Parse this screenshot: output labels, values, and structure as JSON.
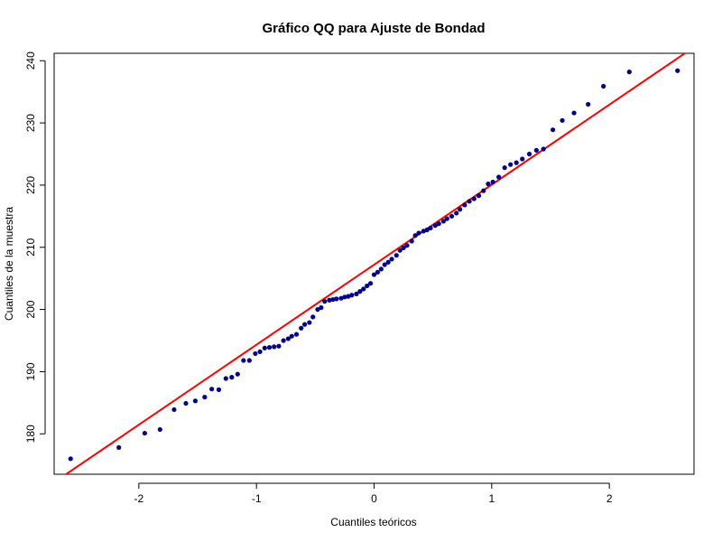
{
  "chart_data": {
    "type": "scatter",
    "title": "Gráfico QQ para Ajuste de Bondad",
    "xlabel": "Cuantiles teóricos",
    "ylabel": "Cuantiles de la muestra",
    "xlim": [
      -2.72,
      2.72
    ],
    "ylim": [
      173.5,
      241.2
    ],
    "xticks": [
      -2,
      -1,
      0,
      1,
      2
    ],
    "xtick_labels": [
      "-2",
      "-1",
      "0",
      "1",
      "2"
    ],
    "yticks": [
      180,
      190,
      200,
      210,
      220,
      230,
      240
    ],
    "ytick_labels": [
      "180",
      "190",
      "200",
      "210",
      "220",
      "230",
      "240"
    ],
    "grid": false,
    "point_color": "#00008B",
    "line_color": "#FF0000",
    "series": [
      {
        "kind": "points",
        "x": [
          -2.58,
          -2.17,
          -1.95,
          -1.82,
          -1.7,
          -1.6,
          -1.52,
          -1.44,
          -1.38,
          -1.32,
          -1.26,
          -1.21,
          -1.16,
          -1.11,
          -1.06,
          -1.01,
          -0.97,
          -0.93,
          -0.89,
          -0.85,
          -0.81,
          -0.77,
          -0.73,
          -0.7,
          -0.66,
          -0.62,
          -0.59,
          -0.55,
          -0.52,
          -0.48,
          -0.45,
          -0.42,
          -0.38,
          -0.35,
          -0.32,
          -0.28,
          -0.25,
          -0.22,
          -0.19,
          -0.15,
          -0.12,
          -0.09,
          -0.06,
          -0.03,
          0.0,
          0.03,
          0.06,
          0.09,
          0.12,
          0.15,
          0.19,
          0.22,
          0.25,
          0.28,
          0.32,
          0.35,
          0.38,
          0.42,
          0.45,
          0.48,
          0.52,
          0.55,
          0.59,
          0.62,
          0.66,
          0.7,
          0.73,
          0.77,
          0.81,
          0.85,
          0.89,
          0.93,
          0.97,
          1.01,
          1.06,
          1.11,
          1.16,
          1.21,
          1.26,
          1.32,
          1.38,
          1.44,
          1.52,
          1.6,
          1.7,
          1.82,
          1.95,
          2.17,
          2.58
        ],
        "y": [
          176.0,
          177.8,
          180.1,
          180.7,
          183.9,
          184.9,
          185.3,
          185.9,
          187.2,
          187.1,
          188.9,
          189.1,
          189.6,
          191.8,
          191.8,
          192.9,
          193.2,
          193.8,
          193.9,
          194.0,
          194.1,
          195.0,
          195.3,
          195.7,
          196.0,
          197.0,
          197.6,
          197.9,
          198.8,
          200.0,
          200.3,
          201.3,
          201.5,
          201.6,
          201.7,
          201.8,
          202.0,
          202.1,
          202.3,
          202.5,
          202.9,
          203.3,
          203.8,
          204.2,
          205.6,
          206.0,
          206.5,
          207.2,
          207.6,
          208.1,
          208.7,
          209.5,
          209.9,
          210.3,
          211.0,
          211.9,
          212.3,
          212.6,
          212.8,
          213.1,
          213.5,
          213.8,
          214.2,
          214.6,
          215.0,
          215.5,
          216.1,
          216.8,
          217.4,
          217.8,
          218.3,
          219.1,
          220.2,
          220.5,
          221.3,
          222.8,
          223.3,
          223.6,
          224.2,
          225.0,
          225.6,
          225.8,
          228.9,
          230.4,
          231.6,
          233.0,
          235.9,
          238.2,
          238.4
        ]
      },
      {
        "kind": "reference_line",
        "x": [
          -2.72,
          2.72
        ],
        "y": [
          172.2,
          242.2
        ]
      }
    ]
  }
}
